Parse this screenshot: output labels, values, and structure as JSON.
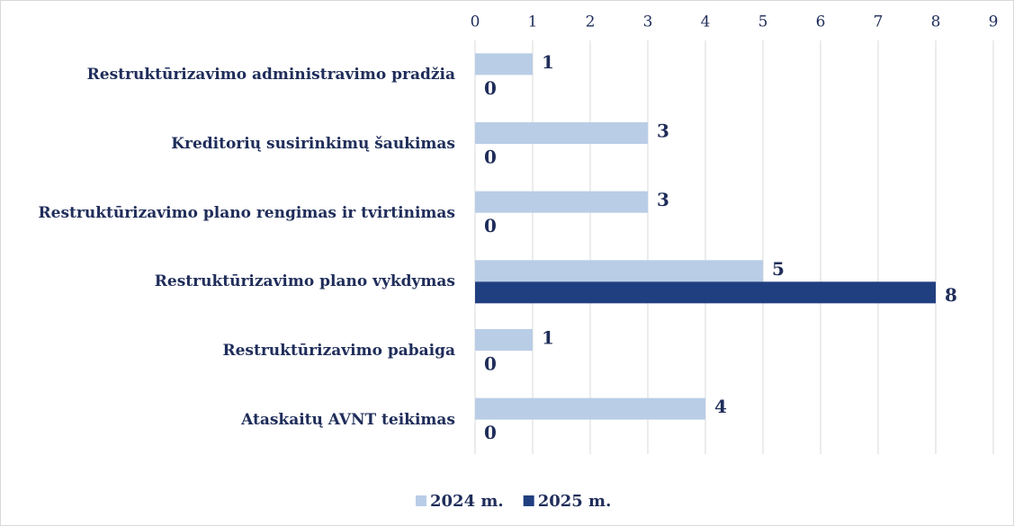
{
  "chart_data": {
    "type": "hbar",
    "categories": [
      "Restruktūrizavimo administravimo pradžia",
      "Kreditorių susirinkimų šaukimas",
      "Restruktūrizavimo plano rengimas ir tvirtinimas",
      "Restruktūrizavimo plano vykdymas",
      "Restruktūrizavimo pabaiga",
      "Ataskaitų AVNT teikimas"
    ],
    "series": [
      {
        "name": "2024 m.",
        "color": "#b9cde6",
        "values": [
          1,
          3,
          3,
          5,
          1,
          4
        ]
      },
      {
        "name": "2025 m.",
        "color": "#203f80",
        "values": [
          0,
          0,
          0,
          8,
          0,
          0
        ]
      }
    ],
    "xlim": [
      0,
      9
    ],
    "xticks": [
      0,
      1,
      2,
      3,
      4,
      5,
      6,
      7,
      8,
      9
    ],
    "grid": true,
    "legend": "bottom"
  }
}
